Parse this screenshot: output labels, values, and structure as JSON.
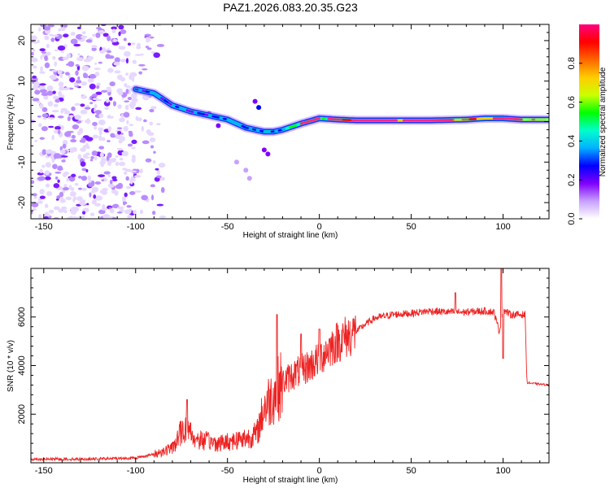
{
  "title": "PAZ1.2026.083.20.35.G23",
  "chart_data": [
    {
      "type": "heatmap",
      "name": "spectrogram",
      "xlabel": "Height of straight line (km)",
      "ylabel": "Frequency (Hz)",
      "xlim": [
        -157,
        125
      ],
      "ylim": [
        -24,
        24
      ],
      "xticks": [
        -150,
        -100,
        -50,
        0,
        50,
        100
      ],
      "yticks": [
        -20,
        -10,
        0,
        10,
        20
      ],
      "colorbar": {
        "label": "Normalized spectral amplitude",
        "range": [
          0,
          1
        ],
        "ticks": [
          "0.0",
          "0.2",
          "0.4",
          "0.6",
          "0.8"
        ],
        "colors": [
          "#ffffff",
          "#c8a0ff",
          "#8000ff",
          "#0000ff",
          "#00b0ff",
          "#00ffcc",
          "#00ff00",
          "#ccff00",
          "#ffcc00",
          "#ff6600",
          "#ff0000",
          "#ff0080"
        ]
      },
      "ridge": {
        "x": [
          -100,
          -90,
          -80,
          -70,
          -60,
          -50,
          -40,
          -30,
          -25,
          -20,
          -10,
          0,
          10,
          20,
          40,
          60,
          80,
          90,
          100,
          110,
          125
        ],
        "y": [
          8,
          7,
          4,
          2.5,
          1.5,
          0.5,
          -1.5,
          -2.5,
          -2.5,
          -2,
          -0.5,
          0.8,
          0.5,
          0.3,
          0.3,
          0.3,
          0.5,
          0.8,
          0.8,
          0.5,
          0.5
        ]
      }
    },
    {
      "type": "line",
      "name": "snr",
      "color": "#ee2222",
      "xlabel": "Height of straight line (km)",
      "ylabel": "SNR (10 * v/v)",
      "xlim": [
        -157,
        125
      ],
      "ylim": [
        0,
        8000
      ],
      "xticks": [
        -150,
        -100,
        -50,
        0,
        50,
        100
      ],
      "yticks": [
        2000,
        4000,
        6000
      ],
      "x": [
        -157,
        -140,
        -120,
        -100,
        -90,
        -80,
        -75,
        -72,
        -68,
        -62,
        -55,
        -48,
        -42,
        -38,
        -34,
        -30,
        -25,
        -20,
        -15,
        -10,
        -5,
        0,
        5,
        10,
        15,
        20,
        25,
        30,
        40,
        50,
        60,
        70,
        80,
        90,
        95,
        98,
        100,
        104,
        110,
        112,
        113,
        118,
        125
      ],
      "values": [
        150,
        150,
        160,
        200,
        350,
        600,
        1300,
        1500,
        1000,
        900,
        800,
        900,
        1000,
        1050,
        1200,
        2300,
        2800,
        3300,
        3600,
        3800,
        4000,
        4300,
        4700,
        5000,
        5200,
        5400,
        5700,
        5950,
        6100,
        6150,
        6250,
        6200,
        6200,
        6250,
        6200,
        5400,
        6300,
        6100,
        6100,
        6100,
        3300,
        3250,
        3200
      ],
      "spikes": [
        {
          "x": -72,
          "value": 2600
        },
        {
          "x": -23,
          "value": 6100
        },
        {
          "x": -10,
          "value": 5300
        },
        {
          "x": 0,
          "value": 5500
        },
        {
          "x": 74,
          "value": 7000
        },
        {
          "x": 99,
          "value": 8000
        },
        {
          "x": 100,
          "value": 4300
        }
      ]
    }
  ]
}
